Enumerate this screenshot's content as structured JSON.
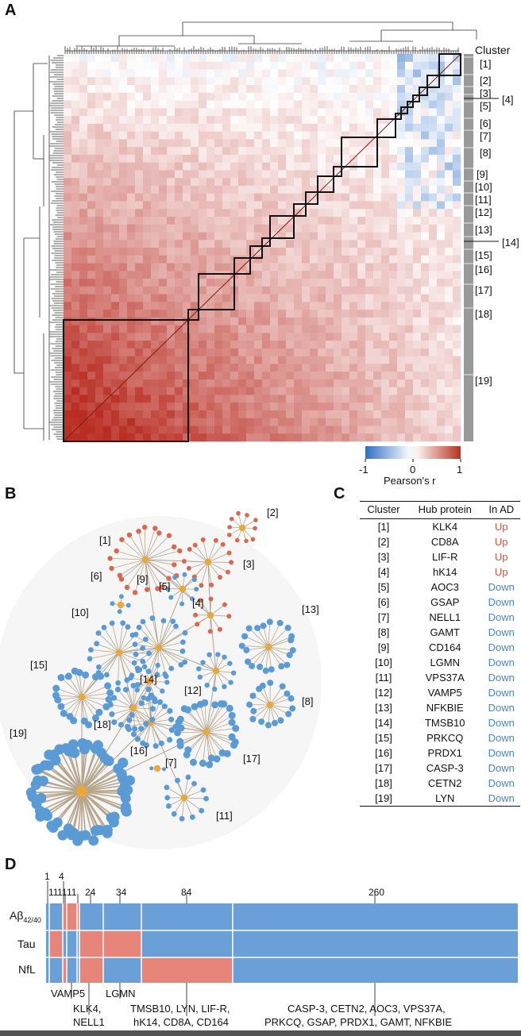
{
  "panels": {
    "a": "A",
    "b": "B",
    "c": "C",
    "d": "D"
  },
  "panel_a": {
    "cluster_header": "Cluster",
    "clusters": [
      "[1]",
      "[2]",
      "[3]",
      "[4]",
      "[5]",
      "[6]",
      "[7]",
      "[8]",
      "[9]",
      "[10]",
      "[11]",
      "[12]",
      "[13]",
      "[14]",
      "[15]",
      "[16]",
      "[17]",
      "[18]",
      "[19]"
    ],
    "colorbar": {
      "label": "Pearson’s r",
      "min": "-1",
      "mid": "0",
      "max": "1",
      "low_color": "#2f6fc0",
      "mid_color": "#ffffff",
      "high_color": "#b7301f"
    }
  },
  "panel_b": {
    "clusters": [
      "[1]",
      "[2]",
      "[3]",
      "[4]",
      "[5]",
      "[6]",
      "[7]",
      "[8]",
      "[9]",
      "[10]",
      "[11]",
      "[12]",
      "[13]",
      "[14]",
      "[15]",
      "[16]",
      "[17]",
      "[18]",
      "[19]"
    ],
    "node_up_color": "#d8694f",
    "node_down_color": "#5b9bd5",
    "hub_color": "#e8a83a"
  },
  "panel_c": {
    "headers": [
      "Cluster",
      "Hub protein",
      "In AD"
    ],
    "rows": [
      {
        "cluster": "[1]",
        "hub": "KLK4",
        "ad": "Up"
      },
      {
        "cluster": "[2]",
        "hub": "CD8A",
        "ad": "Up"
      },
      {
        "cluster": "[3]",
        "hub": "LIF-R",
        "ad": "Up"
      },
      {
        "cluster": "[4]",
        "hub": "hK14",
        "ad": "Up"
      },
      {
        "cluster": "[5]",
        "hub": "AOC3",
        "ad": "Down"
      },
      {
        "cluster": "[6]",
        "hub": "GSAP",
        "ad": "Down"
      },
      {
        "cluster": "[7]",
        "hub": "NELL1",
        "ad": "Down"
      },
      {
        "cluster": "[8]",
        "hub": "GAMT",
        "ad": "Down"
      },
      {
        "cluster": "[9]",
        "hub": "CD164",
        "ad": "Down"
      },
      {
        "cluster": "[10]",
        "hub": "LGMN",
        "ad": "Down"
      },
      {
        "cluster": "[11]",
        "hub": "VPS37A",
        "ad": "Down"
      },
      {
        "cluster": "[12]",
        "hub": "VAMP5",
        "ad": "Down"
      },
      {
        "cluster": "[13]",
        "hub": "NFKBIE",
        "ad": "Down"
      },
      {
        "cluster": "[14]",
        "hub": "TMSB10",
        "ad": "Down"
      },
      {
        "cluster": "[15]",
        "hub": "PRKCQ",
        "ad": "Down"
      },
      {
        "cluster": "[16]",
        "hub": "PRDX1",
        "ad": "Down"
      },
      {
        "cluster": "[17]",
        "hub": "CASP-3",
        "ad": "Down"
      },
      {
        "cluster": "[18]",
        "hub": "CETN2",
        "ad": "Down"
      },
      {
        "cluster": "[19]",
        "hub": "LYN",
        "ad": "Down"
      }
    ]
  },
  "panel_d": {
    "rows": [
      "Aβ42/40",
      "Tau",
      "NfL"
    ],
    "row_label_main": "Aβ",
    "row_label_sub": "42/40",
    "count_top": [
      "1",
      "4"
    ],
    "count_mid": [
      "11",
      "11",
      "11",
      "24",
      "34",
      "84",
      "260"
    ],
    "segments": [
      {
        "n": 1,
        "pattern": [
          "blue",
          "blue",
          "blue"
        ]
      },
      {
        "n": 11,
        "pattern": [
          "blue",
          "red",
          "blue"
        ]
      },
      {
        "n": 4,
        "pattern": [
          "red",
          "blue",
          "red"
        ]
      },
      {
        "n": 11,
        "pattern": [
          "red",
          "blue",
          "blue"
        ]
      },
      {
        "n": 11,
        "pattern": [
          "red",
          "blue",
          "blue"
        ]
      },
      {
        "n": 24,
        "pattern": [
          "blue",
          "red",
          "red"
        ]
      },
      {
        "n": 34,
        "pattern": [
          "blue",
          "red",
          "blue"
        ]
      },
      {
        "n": 84,
        "pattern": [
          "blue",
          "blue",
          "red"
        ]
      },
      {
        "n": 260,
        "pattern": [
          "blue",
          "blue",
          "blue"
        ]
      }
    ],
    "callouts": [
      {
        "text1": "VAMP5",
        "text2": ""
      },
      {
        "text1": "KLK4,",
        "text2": "NELL1"
      },
      {
        "text1": "LGMN",
        "text2": ""
      },
      {
        "text1": "TMSB10, LYN, LIF-R,",
        "text2": "hK14, CD8A, CD164"
      },
      {
        "text1": "CASP-3, CETN2, AOC3, VPS37A,",
        "text2": "PRKCQ, GSAP, PRDX1, GAMT, NFKBIE"
      }
    ],
    "red_color": "#e8857a",
    "blue_color": "#6a9fd8"
  }
}
